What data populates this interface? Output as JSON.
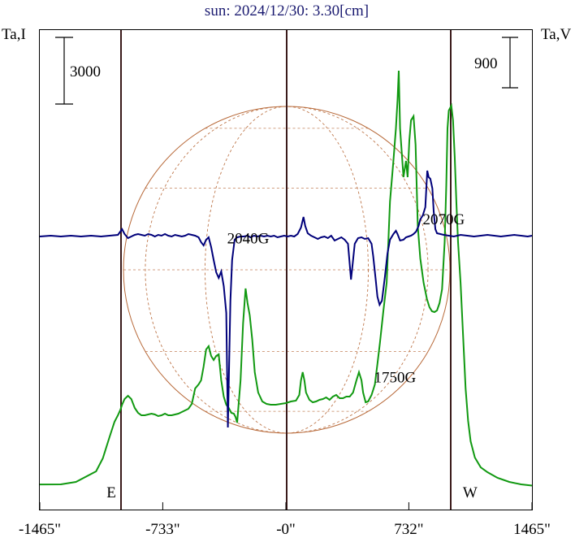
{
  "chart_data": {
    "type": "line",
    "title": "sun: 2024/12/30: 3.30[cm]",
    "ylabel_left": "Ta,I",
    "ylabel_right": "Ta,V",
    "scale_bar_left": "3000",
    "scale_bar_right": "900",
    "xlim": [
      -1465,
      1465
    ],
    "x_ticks": [
      {
        "v": -1465,
        "label": "-1465\""
      },
      {
        "v": -733,
        "label": "-733\""
      },
      {
        "v": 0,
        "label": "-0\""
      },
      {
        "v": 732,
        "label": "732\""
      },
      {
        "v": 1465,
        "label": "1465\""
      }
    ],
    "limb_markers": [
      {
        "v": -981,
        "label": "E"
      },
      {
        "v": 981,
        "label": "W"
      }
    ],
    "annotations": [
      {
        "text": "2040G",
        "x": -225,
        "level": 0.445
      },
      {
        "text": "1750G",
        "x": 650,
        "level": 0.735
      },
      {
        "text": "2070G",
        "x": 940,
        "level": 0.405
      }
    ],
    "series": [
      {
        "color": "#119911",
        "points": [
          [
            -1465,
            1.9
          ],
          [
            -1340,
            2.0
          ],
          [
            -1250,
            5
          ],
          [
            -1130,
            18
          ],
          [
            -1090,
            34
          ],
          [
            -1050,
            60
          ],
          [
            -1020,
            79
          ],
          [
            -1000,
            87
          ],
          [
            -985,
            94
          ],
          [
            -975,
            100
          ],
          [
            -960,
            107
          ],
          [
            -940,
            111
          ],
          [
            -920,
            107
          ],
          [
            -900,
            96
          ],
          [
            -880,
            90
          ],
          [
            -860,
            87
          ],
          [
            -840,
            87
          ],
          [
            -820,
            88
          ],
          [
            -800,
            89
          ],
          [
            -780,
            88
          ],
          [
            -760,
            86
          ],
          [
            -740,
            87
          ],
          [
            -720,
            89
          ],
          [
            -700,
            87
          ],
          [
            -680,
            87
          ],
          [
            -660,
            88
          ],
          [
            -640,
            89
          ],
          [
            -620,
            91
          ],
          [
            -600,
            93
          ],
          [
            -580,
            95
          ],
          [
            -560,
            101
          ],
          [
            -540,
            120
          ],
          [
            -520,
            125
          ],
          [
            -505,
            130
          ],
          [
            -490,
            147
          ],
          [
            -475,
            168
          ],
          [
            -460,
            172
          ],
          [
            -445,
            160
          ],
          [
            -430,
            155
          ],
          [
            -415,
            160
          ],
          [
            -400,
            162
          ],
          [
            -385,
            130
          ],
          [
            -370,
            110
          ],
          [
            -355,
            100
          ],
          [
            -340,
            96
          ],
          [
            -325,
            90
          ],
          [
            -310,
            89
          ],
          [
            -300,
            85
          ],
          [
            -290,
            78
          ],
          [
            -270,
            130
          ],
          [
            -255,
            200
          ],
          [
            -240,
            243
          ],
          [
            -228,
            225
          ],
          [
            -215,
            210
          ],
          [
            -200,
            180
          ],
          [
            -185,
            140
          ],
          [
            -165,
            115
          ],
          [
            -140,
            104
          ],
          [
            -115,
            101
          ],
          [
            -90,
            100
          ],
          [
            -60,
            100
          ],
          [
            -30,
            101
          ],
          [
            0,
            102
          ],
          [
            30,
            104
          ],
          [
            60,
            105
          ],
          [
            80,
            112
          ],
          [
            90,
            130
          ],
          [
            100,
            140
          ],
          [
            110,
            130
          ],
          [
            120,
            115
          ],
          [
            140,
            106
          ],
          [
            160,
            103
          ],
          [
            180,
            104
          ],
          [
            200,
            106
          ],
          [
            220,
            107
          ],
          [
            240,
            109
          ],
          [
            260,
            106
          ],
          [
            280,
            110
          ],
          [
            300,
            112
          ],
          [
            320,
            108
          ],
          [
            340,
            108
          ],
          [
            360,
            110
          ],
          [
            380,
            110
          ],
          [
            400,
            115
          ],
          [
            420,
            130
          ],
          [
            435,
            140
          ],
          [
            450,
            130
          ],
          [
            460,
            115
          ],
          [
            475,
            103
          ],
          [
            490,
            104
          ],
          [
            510,
            112
          ],
          [
            530,
            125
          ],
          [
            545,
            150
          ],
          [
            560,
            176
          ],
          [
            580,
            215
          ],
          [
            600,
            250
          ],
          [
            620,
            350
          ],
          [
            640,
            400
          ],
          [
            655,
            440
          ],
          [
            665,
            475
          ],
          [
            672,
            511
          ],
          [
            680,
            440
          ],
          [
            690,
            410
          ],
          [
            700,
            380
          ],
          [
            715,
            400
          ],
          [
            725,
            380
          ],
          [
            735,
            425
          ],
          [
            745,
            450
          ],
          [
            760,
            455
          ],
          [
            772,
            420
          ],
          [
            785,
            320
          ],
          [
            800,
            280
          ],
          [
            820,
            250
          ],
          [
            840,
            230
          ],
          [
            855,
            220
          ],
          [
            870,
            215
          ],
          [
            885,
            214
          ],
          [
            900,
            216
          ],
          [
            915,
            225
          ],
          [
            930,
            242
          ],
          [
            945,
            300
          ],
          [
            955,
            370
          ],
          [
            962,
            440
          ],
          [
            970,
            462
          ],
          [
            985,
            468
          ],
          [
            995,
            450
          ],
          [
            1005,
            405
          ],
          [
            1015,
            350
          ],
          [
            1025,
            300
          ],
          [
            1040,
            250
          ],
          [
            1055,
            185
          ],
          [
            1070,
            120
          ],
          [
            1085,
            80
          ],
          [
            1100,
            55
          ],
          [
            1125,
            35
          ],
          [
            1160,
            23
          ],
          [
            1200,
            17
          ],
          [
            1260,
            10
          ],
          [
            1330,
            5
          ],
          [
            1400,
            2
          ],
          [
            1465,
            0.5
          ]
        ]
      },
      {
        "color": "#00007a",
        "points": [
          [
            -1465,
            -1
          ],
          [
            -1400,
            0
          ],
          [
            -1340,
            -1
          ],
          [
            -1280,
            0
          ],
          [
            -1220,
            -1
          ],
          [
            -1160,
            0
          ],
          [
            -1100,
            -1
          ],
          [
            -1050,
            0
          ],
          [
            -1000,
            1
          ],
          [
            -975,
            8
          ],
          [
            -960,
            2
          ],
          [
            -940,
            -3
          ],
          [
            -920,
            -1
          ],
          [
            -900,
            1
          ],
          [
            -880,
            2
          ],
          [
            -860,
            1
          ],
          [
            -840,
            0
          ],
          [
            -820,
            2
          ],
          [
            -800,
            1
          ],
          [
            -780,
            -1
          ],
          [
            -760,
            1
          ],
          [
            -740,
            0
          ],
          [
            -720,
            2
          ],
          [
            -700,
            0
          ],
          [
            -680,
            -1
          ],
          [
            -660,
            1
          ],
          [
            -640,
            0
          ],
          [
            -620,
            -1
          ],
          [
            -600,
            0
          ],
          [
            -580,
            2
          ],
          [
            -560,
            1
          ],
          [
            -540,
            0
          ],
          [
            -520,
            -2
          ],
          [
            -505,
            -8
          ],
          [
            -490,
            -12
          ],
          [
            -475,
            -5
          ],
          [
            -460,
            -2
          ],
          [
            -445,
            -14
          ],
          [
            -430,
            -30
          ],
          [
            -415,
            -45
          ],
          [
            -400,
            -52
          ],
          [
            -385,
            -44
          ],
          [
            -370,
            -62
          ],
          [
            -355,
            -95
          ],
          [
            -345,
            -236
          ],
          [
            -338,
            -160
          ],
          [
            -330,
            -80
          ],
          [
            -320,
            -30
          ],
          [
            -305,
            -5
          ],
          [
            -290,
            -2
          ],
          [
            -270,
            -1
          ],
          [
            -250,
            -1
          ],
          [
            -230,
            0
          ],
          [
            -210,
            -2
          ],
          [
            -190,
            0
          ],
          [
            -170,
            -1
          ],
          [
            -150,
            0
          ],
          [
            -130,
            -1
          ],
          [
            -110,
            0
          ],
          [
            -90,
            -1
          ],
          [
            -70,
            0
          ],
          [
            -50,
            -2
          ],
          [
            -30,
            -1
          ],
          [
            -10,
            0
          ],
          [
            10,
            -1
          ],
          [
            30,
            0
          ],
          [
            50,
            -1
          ],
          [
            70,
            2
          ],
          [
            90,
            10
          ],
          [
            105,
            23
          ],
          [
            115,
            12
          ],
          [
            130,
            3
          ],
          [
            150,
            0
          ],
          [
            170,
            -2
          ],
          [
            190,
            -4
          ],
          [
            210,
            -2
          ],
          [
            230,
            -1
          ],
          [
            250,
            -3
          ],
          [
            270,
            0
          ],
          [
            290,
            -6
          ],
          [
            310,
            -4
          ],
          [
            330,
            -2
          ],
          [
            350,
            -5
          ],
          [
            370,
            -10
          ],
          [
            380,
            -35
          ],
          [
            388,
            -54
          ],
          [
            396,
            -38
          ],
          [
            410,
            -10
          ],
          [
            430,
            -3
          ],
          [
            450,
            -2
          ],
          [
            470,
            -4
          ],
          [
            490,
            -3
          ],
          [
            510,
            -10
          ],
          [
            520,
            -25
          ],
          [
            535,
            -55
          ],
          [
            545,
            -75
          ],
          [
            558,
            -85
          ],
          [
            572,
            -80
          ],
          [
            590,
            -50
          ],
          [
            605,
            -22
          ],
          [
            620,
            -5
          ],
          [
            640,
            2
          ],
          [
            655,
            6
          ],
          [
            665,
            2
          ],
          [
            680,
            -6
          ],
          [
            700,
            -5
          ],
          [
            715,
            -2
          ],
          [
            730,
            -1
          ],
          [
            745,
            0
          ],
          [
            760,
            2
          ],
          [
            775,
            5
          ],
          [
            790,
            12
          ],
          [
            800,
            20
          ],
          [
            815,
            25
          ],
          [
            830,
            35
          ],
          [
            842,
            80
          ],
          [
            850,
            72
          ],
          [
            860,
            70
          ],
          [
            872,
            58
          ],
          [
            880,
            30
          ],
          [
            890,
            8
          ],
          [
            900,
            3
          ],
          [
            920,
            2
          ],
          [
            940,
            1
          ],
          [
            970,
            0
          ],
          [
            1000,
            -1
          ],
          [
            1040,
            1
          ],
          [
            1080,
            0
          ],
          [
            1120,
            -1
          ],
          [
            1160,
            0
          ],
          [
            1200,
            1
          ],
          [
            1240,
            0
          ],
          [
            1280,
            -1
          ],
          [
            1320,
            0
          ],
          [
            1360,
            1
          ],
          [
            1400,
            0
          ],
          [
            1440,
            -1
          ],
          [
            1465,
            0
          ]
        ]
      }
    ]
  }
}
